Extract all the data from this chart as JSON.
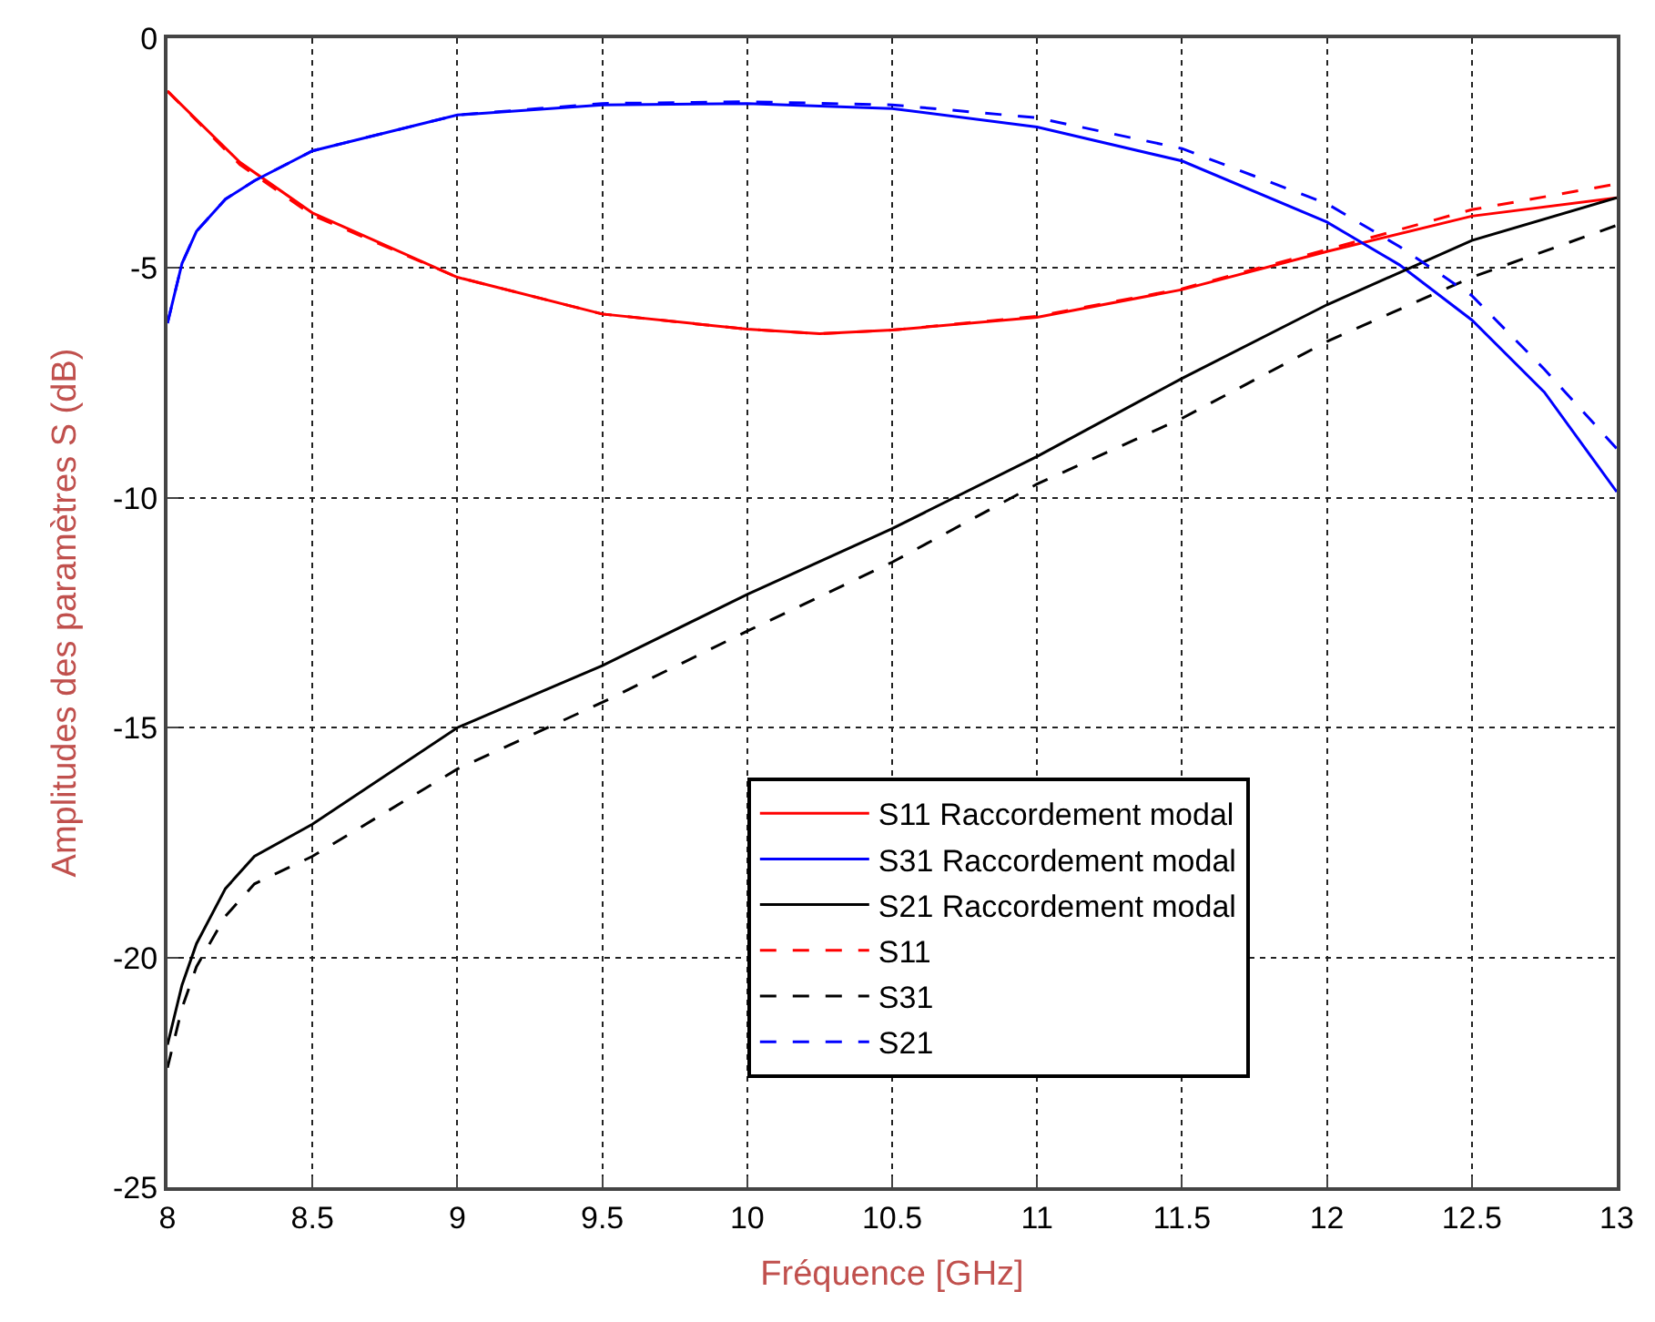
{
  "chart_data": {
    "type": "line",
    "xlabel": "Fréquence [GHz]",
    "ylabel": "Amplitudes des paramètres S (dB)",
    "xlim": [
      8,
      13
    ],
    "ylim": [
      -25,
      0
    ],
    "xticks": [
      8,
      8.5,
      9,
      9.5,
      10,
      10.5,
      11,
      11.5,
      12,
      12.5,
      13
    ],
    "yticks": [
      -25,
      -20,
      -15,
      -10,
      -5,
      0
    ],
    "grid": true,
    "legend": "bottom right",
    "marker": "none",
    "series": [
      {
        "name": "S11 Raccordement modal",
        "color": "#ff0000",
        "line_style": "solid",
        "x": [
          8,
          8.25,
          8.5,
          9,
          9.5,
          10,
          10.25,
          10.5,
          11,
          11.5,
          12,
          12.5,
          13
        ],
        "values": [
          -1.15,
          -2.7,
          -3.8,
          -5.2,
          -6.0,
          -6.33,
          -6.43,
          -6.35,
          -6.07,
          -5.47,
          -4.64,
          -3.87,
          -3.47
        ]
      },
      {
        "name": "S31 Raccordement modal",
        "color": "#0000ff",
        "line_style": "solid",
        "x": [
          8,
          8.05,
          8.1,
          8.2,
          8.3,
          8.5,
          9,
          9.5,
          10,
          10.5,
          11,
          11.5,
          12,
          12.25,
          12.5,
          12.75,
          13
        ],
        "values": [
          -6.2,
          -4.9,
          -4.2,
          -3.5,
          -3.1,
          -2.45,
          -1.67,
          -1.45,
          -1.42,
          -1.53,
          -1.93,
          -2.67,
          -4.0,
          -4.93,
          -6.13,
          -7.7,
          -9.87
        ]
      },
      {
        "name": "S21 Raccordement modal",
        "color": "#000000",
        "line_style": "solid",
        "x": [
          8,
          8.05,
          8.1,
          8.2,
          8.3,
          8.5,
          9,
          9.5,
          10,
          10.5,
          11,
          11.5,
          12,
          12.5,
          13
        ],
        "values": [
          -21.9,
          -20.6,
          -19.7,
          -18.5,
          -17.8,
          -17.1,
          -15.0,
          -13.65,
          -12.1,
          -10.67,
          -9.1,
          -7.4,
          -5.8,
          -4.4,
          -3.47
        ]
      },
      {
        "name": "S11",
        "color": "#ff0000",
        "line_style": "dashed",
        "x": [
          8,
          8.25,
          8.5,
          9,
          9.5,
          10,
          10.25,
          10.5,
          11,
          11.5,
          12,
          12.5,
          13
        ],
        "values": [
          -1.15,
          -2.75,
          -3.85,
          -5.2,
          -6.0,
          -6.33,
          -6.43,
          -6.35,
          -6.05,
          -5.45,
          -4.6,
          -3.73,
          -3.17
        ]
      },
      {
        "name": "S31",
        "color": "#000000",
        "line_style": "dashed",
        "x": [
          8,
          8.05,
          8.1,
          8.2,
          8.3,
          8.5,
          9,
          9.5,
          10,
          10.5,
          11,
          11.5,
          12,
          12.5,
          13
        ],
        "values": [
          -22.4,
          -21.1,
          -20.2,
          -19.1,
          -18.4,
          -17.8,
          -15.9,
          -14.45,
          -12.9,
          -11.4,
          -9.7,
          -8.27,
          -6.6,
          -5.2,
          -4.07
        ]
      },
      {
        "name": "S21",
        "color": "#0000ff",
        "line_style": "dashed",
        "x": [
          8,
          8.05,
          8.1,
          8.2,
          8.3,
          8.5,
          9,
          9.5,
          10,
          10.5,
          11,
          11.5,
          12,
          12.25,
          12.5,
          12.75,
          13
        ],
        "values": [
          -6.2,
          -4.9,
          -4.2,
          -3.5,
          -3.1,
          -2.45,
          -1.67,
          -1.42,
          -1.38,
          -1.45,
          -1.73,
          -2.4,
          -3.6,
          -4.53,
          -5.6,
          -7.2,
          -8.93
        ]
      }
    ]
  }
}
